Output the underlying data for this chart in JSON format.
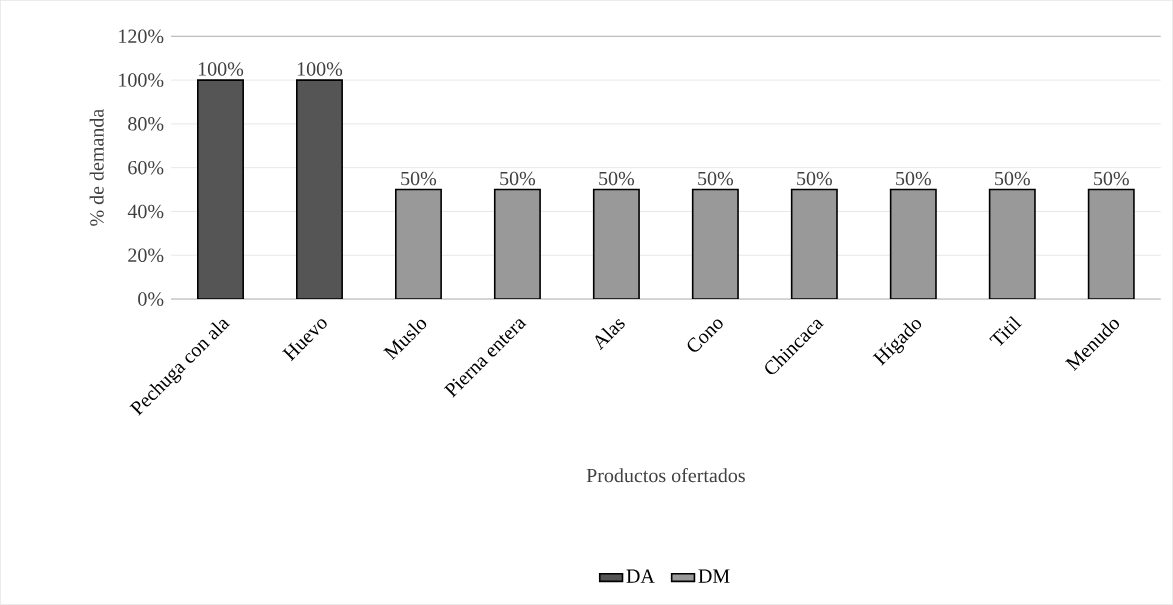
{
  "chart_data": {
    "type": "bar",
    "xlabel": "Productos ofertados",
    "ylabel": "% de demanda",
    "categories": [
      "Pechuga con ala",
      "Huevo",
      "Muslo",
      "Pierna entera",
      "Alas",
      "Cono",
      "Chincaca",
      "Hígado",
      "Titil",
      "Menudo"
    ],
    "series": [
      {
        "name": "DA",
        "color": "#555555",
        "values": [
          100,
          100,
          null,
          null,
          null,
          null,
          null,
          null,
          null,
          null
        ],
        "value_labels": [
          "100%",
          "100%",
          null,
          null,
          null,
          null,
          null,
          null,
          null,
          null
        ]
      },
      {
        "name": "DM",
        "color": "#999999",
        "values": [
          null,
          null,
          50,
          50,
          50,
          50,
          50,
          50,
          50,
          50
        ],
        "value_labels": [
          null,
          null,
          "50%",
          "50%",
          "50%",
          "50%",
          "50%",
          "50%",
          "50%",
          "50%"
        ]
      }
    ],
    "ylim": [
      0,
      120
    ],
    "yticks": [
      {
        "value": 0,
        "label": "0%"
      },
      {
        "value": 20,
        "label": "20%"
      },
      {
        "value": 40,
        "label": "40%"
      },
      {
        "value": 60,
        "label": "60%"
      },
      {
        "value": 80,
        "label": "80%"
      },
      {
        "value": 100,
        "label": "100%"
      },
      {
        "value": 120,
        "label": "120%"
      }
    ],
    "grid": "y",
    "legend": "bottom"
  }
}
